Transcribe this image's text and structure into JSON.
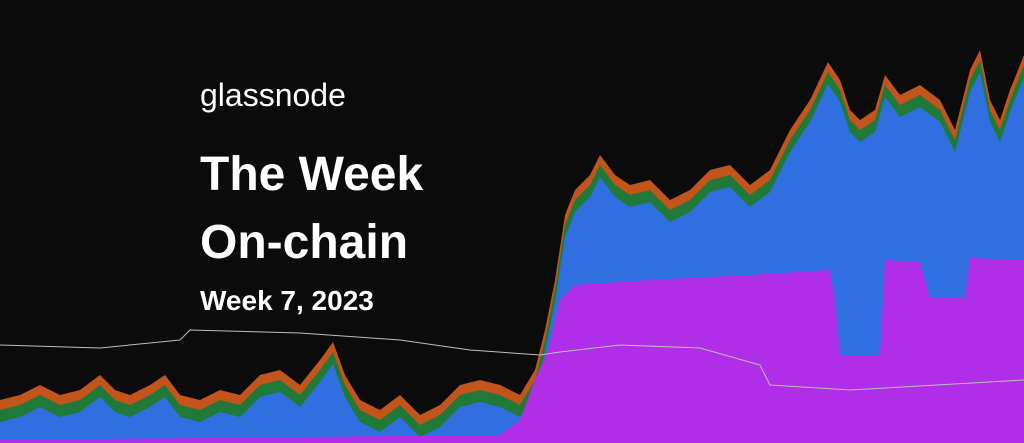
{
  "brand": "glassnode",
  "title": [
    "The Week",
    "On-chain"
  ],
  "subtitle": "Week 7, 2023"
}
